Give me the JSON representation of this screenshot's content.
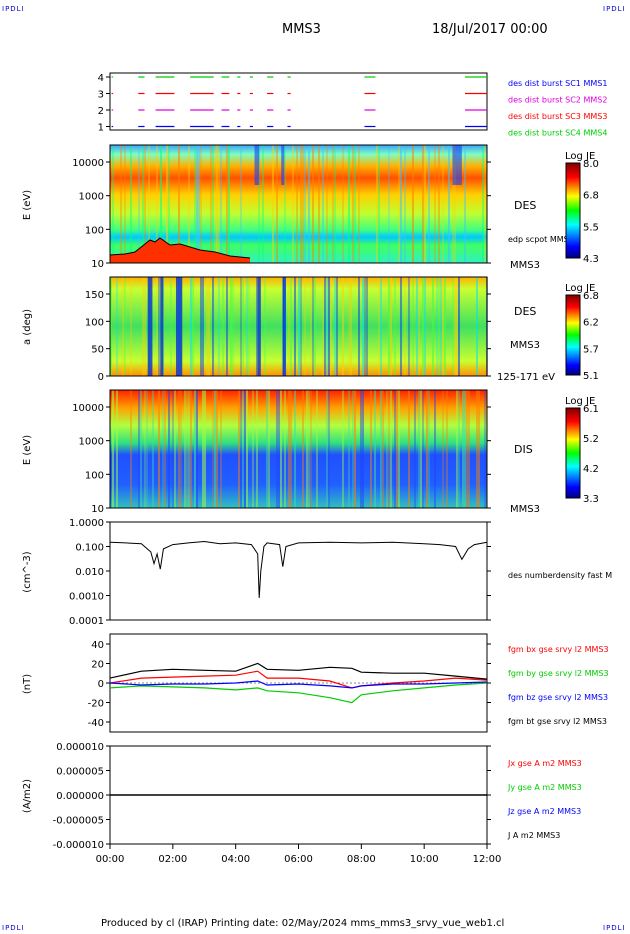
{
  "corner_labels": {
    "top_left": "IPDLI",
    "top_right": "IPDLI",
    "bottom_left": "IPDLI",
    "bottom_right": "IPDLI"
  },
  "header": {
    "title": "MMS3",
    "date": "18/Jul/2017 00:00"
  },
  "footer": {
    "text": "Produced by cl (IRAP)   Printing date: 02/May/2024   mms_mms3_srvy_vue_web1.cl"
  },
  "colors": {
    "red": "#ff0000",
    "green": "#00cc00",
    "blue": "#0000ff",
    "magenta": "#e000e0",
    "black": "#000000",
    "dark_red": "#cc0000"
  },
  "chart_data": [
    {
      "type": "timeline",
      "yticks": [
        "4",
        "3",
        "2",
        "1"
      ],
      "legend": [
        "des dist burst SC1 MMS1",
        "des dist burst SC2 MMS2",
        "des dist burst SC3 MMS3",
        "des dist burst SC4 MMS4"
      ],
      "legend_colors": [
        "#0000ff",
        "#e000e0",
        "#ff0000",
        "#00cc00"
      ],
      "segments_hours": [
        [
          0.05,
          0.1
        ],
        [
          0.9,
          1.1
        ],
        [
          1.45,
          2.05
        ],
        [
          2.55,
          3.3
        ],
        [
          3.55,
          3.8
        ],
        [
          4.05,
          4.15
        ],
        [
          4.45,
          4.55
        ],
        [
          5.0,
          5.2
        ],
        [
          5.65,
          5.75
        ],
        [
          8.1,
          8.45
        ],
        [
          11.3,
          12.0
        ]
      ]
    },
    {
      "type": "spectrogram",
      "name": "DES",
      "ylabel": "E (eV)",
      "yticks": [
        "10000",
        "1000",
        "100",
        "10"
      ],
      "side_labels": [
        "DES",
        "edp scpot MMS3",
        "MMS3"
      ],
      "colorbar": {
        "title": "Log JE",
        "ticks": [
          "8.0",
          "6.8",
          "5.5",
          "4.3"
        ]
      }
    },
    {
      "type": "spectrogram",
      "name": "DES pitch angle",
      "ylabel": "a (deg)",
      "yticks": [
        "150",
        "100",
        "50",
        "0"
      ],
      "side_labels": [
        "DES",
        "MMS3",
        "125-171 eV"
      ],
      "colorbar": {
        "title": "Log JE",
        "ticks": [
          "6.8",
          "6.2",
          "5.7",
          "5.1"
        ]
      }
    },
    {
      "type": "spectrogram",
      "name": "DIS",
      "ylabel": "E (eV)",
      "yticks": [
        "10000",
        "1000",
        "100",
        "10"
      ],
      "side_labels": [
        "DIS",
        "MMS3"
      ],
      "colorbar": {
        "title": "Log JE",
        "ticks": [
          "6.1",
          "5.2",
          "4.2",
          "3.3"
        ]
      }
    },
    {
      "type": "line",
      "scale": "log",
      "ylabel": "(cm^-3)",
      "yticks": [
        "1.0000",
        "0.100",
        "0.010",
        "0.0010",
        "0.0001"
      ],
      "legend": [
        "des numberdensity fast M"
      ],
      "x_hours": [
        0,
        0.5,
        1.0,
        1.3,
        1.4,
        1.5,
        1.6,
        1.7,
        2.0,
        2.5,
        3.0,
        3.5,
        4.0,
        4.5,
        4.7,
        4.75,
        4.8,
        4.9,
        5.0,
        5.4,
        5.5,
        5.6,
        6.0,
        7.0,
        8.0,
        9.0,
        10.0,
        10.5,
        11.0,
        11.2,
        11.4,
        11.6,
        12.0
      ],
      "values": [
        0.15,
        0.14,
        0.13,
        0.06,
        0.02,
        0.05,
        0.012,
        0.08,
        0.12,
        0.14,
        0.16,
        0.13,
        0.14,
        0.12,
        0.05,
        0.0008,
        0.01,
        0.1,
        0.14,
        0.12,
        0.015,
        0.1,
        0.14,
        0.15,
        0.14,
        0.15,
        0.13,
        0.12,
        0.1,
        0.03,
        0.08,
        0.12,
        0.15
      ]
    },
    {
      "type": "line",
      "ylabel": "(nT)",
      "yticks": [
        "40",
        "20",
        "0",
        "-20",
        "-40"
      ],
      "ylim": [
        -50,
        50
      ],
      "legend": [
        "fgm bx gse srvy l2 MMS3",
        "fgm by gse srvy l2 MMS3",
        "fgm bz gse srvy l2 MMS3",
        "fgm bt gse srvy l2 MMS3"
      ],
      "legend_colors": [
        "#ff0000",
        "#00cc00",
        "#0000ff",
        "#000000"
      ],
      "x_hours": [
        0,
        1,
        2,
        3,
        4,
        4.7,
        5,
        6,
        7,
        7.7,
        8,
        9,
        10,
        11,
        12
      ],
      "series": [
        {
          "name": "bx",
          "values": [
            0,
            5,
            6,
            7,
            8,
            12,
            5,
            5,
            2,
            -5,
            -3,
            0,
            2,
            5,
            3
          ]
        },
        {
          "name": "by",
          "values": [
            -5,
            -3,
            -4,
            -5,
            -7,
            -5,
            -8,
            -10,
            -15,
            -20,
            -12,
            -8,
            -5,
            -2,
            0
          ]
        },
        {
          "name": "bz",
          "values": [
            0,
            -2,
            -1,
            -1,
            0,
            2,
            -2,
            -1,
            -3,
            -5,
            -3,
            -1,
            -1,
            0,
            1
          ]
        },
        {
          "name": "bt",
          "values": [
            5,
            12,
            14,
            13,
            12,
            20,
            14,
            13,
            16,
            15,
            11,
            10,
            10,
            7,
            4
          ]
        }
      ]
    },
    {
      "type": "line",
      "ylabel": "(A/m2)",
      "yticks": [
        "0.000010",
        "0.000005",
        "0.000000",
        "-0.000005",
        "-0.000010"
      ],
      "legend": [
        "Jx gse A m2 MMS3",
        "Jy gse A m2 MMS3",
        "Jz gse A m2 MMS3",
        "J A m2 MMS3"
      ],
      "legend_colors": [
        "#ff0000",
        "#00cc00",
        "#0000ff",
        "#000000"
      ],
      "value": 0
    }
  ],
  "xaxis": {
    "ticks": [
      "00:00",
      "02:00",
      "04:00",
      "06:00",
      "08:00",
      "10:00",
      "12:00"
    ]
  }
}
